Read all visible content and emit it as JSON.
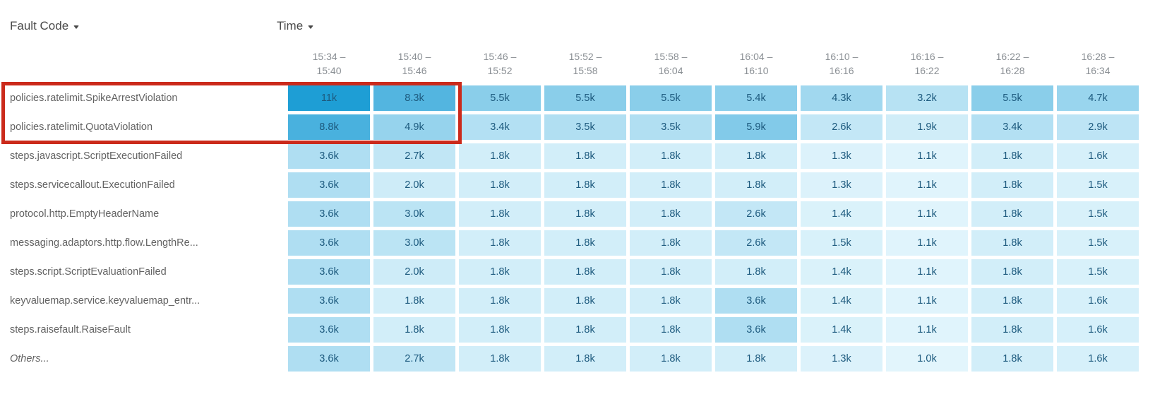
{
  "header": {
    "row_dimension": {
      "label": "Fault Code"
    },
    "column_dimension": {
      "label": "Time"
    }
  },
  "chart_data": {
    "type": "heatmap",
    "row_axis_label": "Fault Code",
    "column_axis_label": "Time",
    "columns": [
      {
        "start": "15:34 –",
        "end": "15:40"
      },
      {
        "start": "15:40 –",
        "end": "15:46"
      },
      {
        "start": "15:46 –",
        "end": "15:52"
      },
      {
        "start": "15:52 –",
        "end": "15:58"
      },
      {
        "start": "15:58 –",
        "end": "16:04"
      },
      {
        "start": "16:04 –",
        "end": "16:10"
      },
      {
        "start": "16:10 –",
        "end": "16:16"
      },
      {
        "start": "16:16 –",
        "end": "16:22"
      },
      {
        "start": "16:22 –",
        "end": "16:28"
      },
      {
        "start": "16:28 –",
        "end": "16:34"
      }
    ],
    "rows": [
      {
        "label": "policies.ratelimit.SpikeArrestViolation",
        "italic": false,
        "display": [
          "11k",
          "8.3k",
          "5.5k",
          "5.5k",
          "5.5k",
          "5.4k",
          "4.3k",
          "3.2k",
          "5.5k",
          "4.7k"
        ],
        "values": [
          11000,
          8300,
          5500,
          5500,
          5500,
          5400,
          4300,
          3200,
          5500,
          4700
        ]
      },
      {
        "label": "policies.ratelimit.QuotaViolation",
        "italic": false,
        "display": [
          "8.8k",
          "4.9k",
          "3.4k",
          "3.5k",
          "3.5k",
          "5.9k",
          "2.6k",
          "1.9k",
          "3.4k",
          "2.9k"
        ],
        "values": [
          8800,
          4900,
          3400,
          3500,
          3500,
          5900,
          2600,
          1900,
          3400,
          2900
        ]
      },
      {
        "label": "steps.javascript.ScriptExecutionFailed",
        "italic": false,
        "display": [
          "3.6k",
          "2.7k",
          "1.8k",
          "1.8k",
          "1.8k",
          "1.8k",
          "1.3k",
          "1.1k",
          "1.8k",
          "1.6k"
        ],
        "values": [
          3600,
          2700,
          1800,
          1800,
          1800,
          1800,
          1300,
          1100,
          1800,
          1600
        ]
      },
      {
        "label": "steps.servicecallout.ExecutionFailed",
        "italic": false,
        "display": [
          "3.6k",
          "2.0k",
          "1.8k",
          "1.8k",
          "1.8k",
          "1.8k",
          "1.3k",
          "1.1k",
          "1.8k",
          "1.5k"
        ],
        "values": [
          3600,
          2000,
          1800,
          1800,
          1800,
          1800,
          1300,
          1100,
          1800,
          1500
        ]
      },
      {
        "label": "protocol.http.EmptyHeaderName",
        "italic": false,
        "display": [
          "3.6k",
          "3.0k",
          "1.8k",
          "1.8k",
          "1.8k",
          "2.6k",
          "1.4k",
          "1.1k",
          "1.8k",
          "1.5k"
        ],
        "values": [
          3600,
          3000,
          1800,
          1800,
          1800,
          2600,
          1400,
          1100,
          1800,
          1500
        ]
      },
      {
        "label": "messaging.adaptors.http.flow.LengthRe...",
        "italic": false,
        "display": [
          "3.6k",
          "3.0k",
          "1.8k",
          "1.8k",
          "1.8k",
          "2.6k",
          "1.5k",
          "1.1k",
          "1.8k",
          "1.5k"
        ],
        "values": [
          3600,
          3000,
          1800,
          1800,
          1800,
          2600,
          1500,
          1100,
          1800,
          1500
        ]
      },
      {
        "label": "steps.script.ScriptEvaluationFailed",
        "italic": false,
        "display": [
          "3.6k",
          "2.0k",
          "1.8k",
          "1.8k",
          "1.8k",
          "1.8k",
          "1.4k",
          "1.1k",
          "1.8k",
          "1.5k"
        ],
        "values": [
          3600,
          2000,
          1800,
          1800,
          1800,
          1800,
          1400,
          1100,
          1800,
          1500
        ]
      },
      {
        "label": "keyvaluemap.service.keyvaluemap_entr...",
        "italic": false,
        "display": [
          "3.6k",
          "1.8k",
          "1.8k",
          "1.8k",
          "1.8k",
          "3.6k",
          "1.4k",
          "1.1k",
          "1.8k",
          "1.6k"
        ],
        "values": [
          3600,
          1800,
          1800,
          1800,
          1800,
          3600,
          1400,
          1100,
          1800,
          1600
        ]
      },
      {
        "label": "steps.raisefault.RaiseFault",
        "italic": false,
        "display": [
          "3.6k",
          "1.8k",
          "1.8k",
          "1.8k",
          "1.8k",
          "3.6k",
          "1.4k",
          "1.1k",
          "1.8k",
          "1.6k"
        ],
        "values": [
          3600,
          1800,
          1800,
          1800,
          1800,
          3600,
          1400,
          1100,
          1800,
          1600
        ]
      },
      {
        "label": "Others...",
        "italic": true,
        "display": [
          "3.6k",
          "2.7k",
          "1.8k",
          "1.8k",
          "1.8k",
          "1.8k",
          "1.3k",
          "1.0k",
          "1.8k",
          "1.6k"
        ],
        "values": [
          3600,
          2700,
          1800,
          1800,
          1800,
          1800,
          1300,
          1000,
          1800,
          1600
        ]
      }
    ],
    "color_scale": {
      "min_value": 1000,
      "max_value": 11000,
      "min_color": "#e2f5fc",
      "max_color": "#1e9ed5"
    },
    "annotation": {
      "type": "highlight-box",
      "color": "#cb2a1b",
      "row_indexes": [
        0,
        1
      ],
      "column_indexes": [
        0,
        1
      ]
    }
  }
}
